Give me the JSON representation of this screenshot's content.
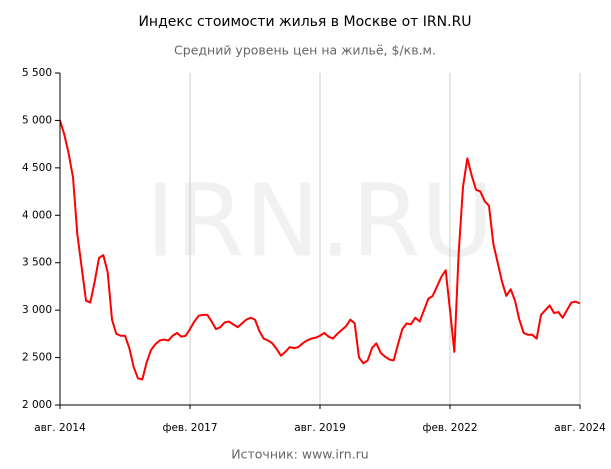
{
  "chart_data": {
    "type": "line",
    "title": "Индекс стоимости жилья в Москве от IRN.RU",
    "subtitle": "Средний уровень цен на жильё, $/кв.м.",
    "watermark": "IRN.RU",
    "source": "Источник: www.irn.ru",
    "x": [
      "2014-08",
      "2014-09",
      "2014-10",
      "2014-11",
      "2014-12",
      "2015-01",
      "2015-02",
      "2015-03",
      "2015-04",
      "2015-05",
      "2015-06",
      "2015-07",
      "2015-08",
      "2015-09",
      "2015-10",
      "2015-11",
      "2015-12",
      "2016-01",
      "2016-02",
      "2016-03",
      "2016-04",
      "2016-05",
      "2016-06",
      "2016-07",
      "2016-08",
      "2016-09",
      "2016-10",
      "2016-11",
      "2016-12",
      "2017-01",
      "2017-02",
      "2017-03",
      "2017-04",
      "2017-05",
      "2017-06",
      "2017-07",
      "2017-08",
      "2017-09",
      "2017-10",
      "2017-11",
      "2017-12",
      "2018-01",
      "2018-02",
      "2018-03",
      "2018-04",
      "2018-05",
      "2018-06",
      "2018-07",
      "2018-08",
      "2018-09",
      "2018-10",
      "2018-11",
      "2018-12",
      "2019-01",
      "2019-02",
      "2019-03",
      "2019-04",
      "2019-05",
      "2019-06",
      "2019-07",
      "2019-08",
      "2019-09",
      "2019-10",
      "2019-11",
      "2019-12",
      "2020-01",
      "2020-02",
      "2020-03",
      "2020-04",
      "2020-05",
      "2020-06",
      "2020-07",
      "2020-08",
      "2020-09",
      "2020-10",
      "2020-11",
      "2020-12",
      "2021-01",
      "2021-02",
      "2021-03",
      "2021-04",
      "2021-05",
      "2021-06",
      "2021-07",
      "2021-08",
      "2021-09",
      "2021-10",
      "2021-11",
      "2021-12",
      "2022-01",
      "2022-02",
      "2022-03",
      "2022-04",
      "2022-05",
      "2022-06",
      "2022-07",
      "2022-08",
      "2022-09",
      "2022-10",
      "2022-11",
      "2022-12",
      "2023-01",
      "2023-02",
      "2023-03",
      "2023-04",
      "2023-05",
      "2023-06",
      "2023-07",
      "2023-08",
      "2023-09",
      "2023-10",
      "2023-11",
      "2023-12",
      "2024-01",
      "2024-02",
      "2024-03",
      "2024-04",
      "2024-05",
      "2024-06",
      "2024-07",
      "2024-08"
    ],
    "series": [
      {
        "color": "#ff0000",
        "values": [
          5000,
          4850,
          4650,
          4400,
          3800,
          3450,
          3100,
          3080,
          3300,
          3550,
          3580,
          3400,
          2900,
          2750,
          2730,
          2730,
          2600,
          2400,
          2280,
          2270,
          2450,
          2580,
          2640,
          2680,
          2690,
          2680,
          2730,
          2760,
          2720,
          2730,
          2800,
          2880,
          2940,
          2950,
          2950,
          2880,
          2800,
          2820,
          2870,
          2880,
          2850,
          2820,
          2860,
          2900,
          2920,
          2900,
          2780,
          2700,
          2680,
          2650,
          2590,
          2520,
          2560,
          2610,
          2600,
          2610,
          2650,
          2680,
          2700,
          2710,
          2730,
          2760,
          2720,
          2700,
          2750,
          2790,
          2830,
          2900,
          2860,
          2500,
          2440,
          2470,
          2600,
          2650,
          2550,
          2510,
          2480,
          2470,
          2640,
          2800,
          2860,
          2850,
          2920,
          2880,
          3000,
          3120,
          3150,
          3250,
          3350,
          3420,
          3000,
          2560,
          3600,
          4300,
          4600,
          4420,
          4270,
          4250,
          4150,
          4100,
          3700,
          3500,
          3300,
          3150,
          3220,
          3100,
          2900,
          2760,
          2740,
          2740,
          2700,
          2950,
          3000,
          3050,
          2970,
          2980,
          2920,
          3000,
          3080,
          3090,
          3070
        ]
      }
    ],
    "xlim": [
      "2014-08",
      "2024-08"
    ],
    "xticks": [
      {
        "value": "2014-08",
        "label": "авг. 2014"
      },
      {
        "value": "2017-02",
        "label": "фев. 2017"
      },
      {
        "value": "2019-08",
        "label": "авг. 2019"
      },
      {
        "value": "2022-02",
        "label": "фев. 2022"
      },
      {
        "value": "2024-08",
        "label": "авг. 2024"
      }
    ],
    "ylim": [
      2000,
      5500
    ],
    "yticks": [
      {
        "value": 2000,
        "label": "2 000"
      },
      {
        "value": 2500,
        "label": "2 500"
      },
      {
        "value": 3000,
        "label": "3 000"
      },
      {
        "value": 3500,
        "label": "3 500"
      },
      {
        "value": 4000,
        "label": "4 000"
      },
      {
        "value": 4500,
        "label": "4 500"
      },
      {
        "value": 5000,
        "label": "5 000"
      },
      {
        "value": 5500,
        "label": "5 500"
      }
    ],
    "grid": "x"
  }
}
